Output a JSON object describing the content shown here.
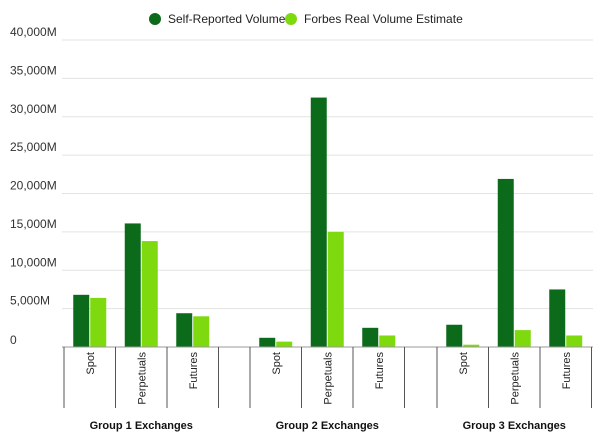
{
  "chart_data": {
    "type": "bar",
    "title": "",
    "xlabel": "",
    "ylabel": "",
    "ylim": [
      0,
      40000
    ],
    "yticks": [
      0,
      5000,
      10000,
      15000,
      20000,
      25000,
      30000,
      35000,
      40000
    ],
    "ytick_labels": [
      "0",
      "5,000M",
      "10,000M",
      "15,000M",
      "20,000M",
      "25,000M",
      "30,000M",
      "35,000M",
      "40,000M"
    ],
    "legend_position": "top-center",
    "groups": [
      {
        "name": "Group 1 Exchanges",
        "categories": [
          "Spot",
          "Perpetuals",
          "Futures"
        ]
      },
      {
        "name": "Group 2 Exchanges",
        "categories": [
          "Spot",
          "Perpetuals",
          "Futures"
        ]
      },
      {
        "name": "Group 3 Exchanges",
        "categories": [
          "Spot",
          "Perpetuals",
          "Futures"
        ]
      }
    ],
    "series": [
      {
        "name": "Self-Reported Volume",
        "color": "#0b6b1a",
        "values": [
          [
            6800,
            16100,
            4400
          ],
          [
            1200,
            32500,
            2500
          ],
          [
            2900,
            21900,
            7500
          ]
        ]
      },
      {
        "name": "Forbes Real Volume Estimate",
        "color": "#7ed90f",
        "values": [
          [
            6400,
            13800,
            4000
          ],
          [
            700,
            15000,
            1500
          ],
          [
            300,
            2200,
            1500
          ]
        ]
      }
    ]
  }
}
